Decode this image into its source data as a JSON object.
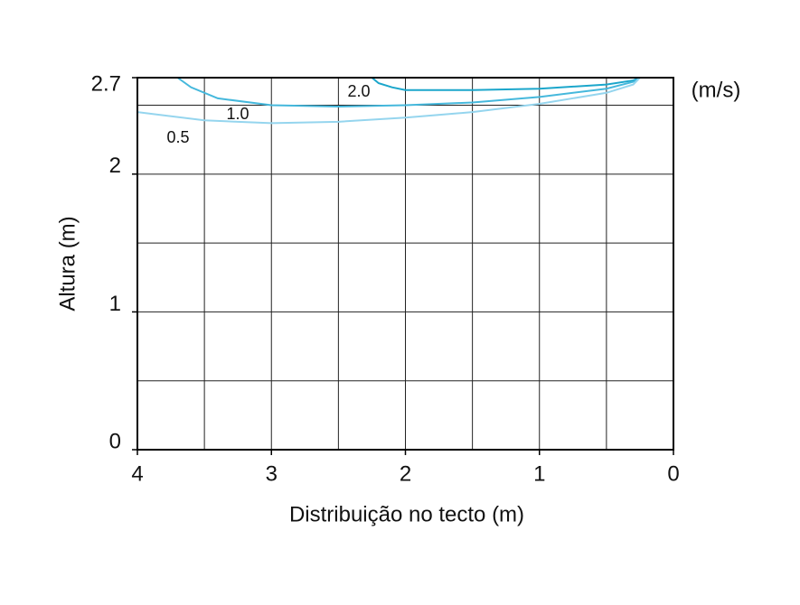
{
  "chart_data": {
    "type": "line",
    "xlabel": "Distribuição no tecto (m)",
    "ylabel": "Altura (m)",
    "unit": "(m/s)",
    "xlim": [
      4,
      0
    ],
    "ylim": [
      0,
      2.7
    ],
    "xticks": [
      4,
      3,
      2,
      1,
      0
    ],
    "yticks": [
      0,
      1,
      2,
      2.7
    ],
    "xgrid": [
      0.5,
      1,
      1.5,
      2,
      2.5,
      3,
      3.5
    ],
    "ygrid": [
      0.5,
      1,
      1.5,
      2,
      2.5
    ],
    "grid": true,
    "series": [
      {
        "name": "2.0",
        "color": "#1ba6cb",
        "x": [
          2.25,
          2.2,
          2.1,
          2.0,
          1.5,
          1.0,
          0.5,
          0.3,
          0.25
        ],
        "values": [
          2.7,
          2.66,
          2.63,
          2.61,
          2.61,
          2.62,
          2.65,
          2.68,
          2.7
        ]
      },
      {
        "name": "1.0",
        "color": "#45b8dc",
        "x": [
          3.7,
          3.6,
          3.4,
          3.0,
          2.5,
          2.0,
          1.5,
          1.0,
          0.5,
          0.3,
          0.25
        ],
        "values": [
          2.7,
          2.63,
          2.55,
          2.5,
          2.49,
          2.5,
          2.52,
          2.56,
          2.62,
          2.67,
          2.7
        ]
      },
      {
        "name": "0.5",
        "color": "#95d5ee",
        "x": [
          4,
          3.5,
          3.0,
          2.5,
          2.0,
          1.5,
          1.0,
          0.5,
          0.3,
          0.25
        ],
        "values": [
          2.45,
          2.39,
          2.37,
          2.38,
          2.41,
          2.45,
          2.51,
          2.59,
          2.65,
          2.7
        ]
      }
    ]
  }
}
